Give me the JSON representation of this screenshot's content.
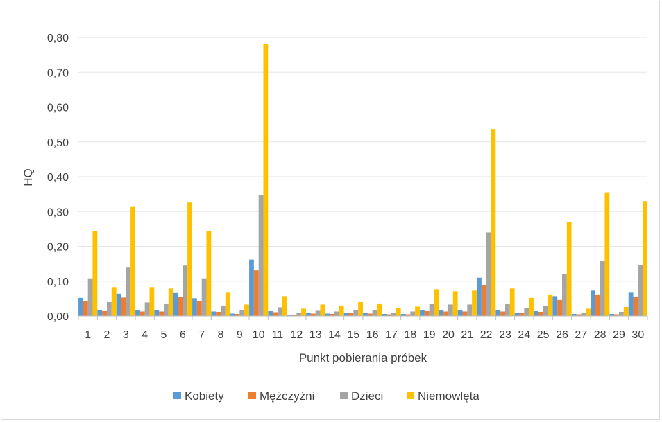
{
  "chart_data": {
    "type": "bar",
    "title": "",
    "xlabel": "Punkt pobierania próbek",
    "ylabel": "HQ",
    "ylim": [
      0,
      0.8
    ],
    "yticks": [
      0,
      0.1,
      0.2,
      0.3,
      0.4,
      0.5,
      0.6,
      0.7,
      0.8
    ],
    "ytick_labels": [
      "0,00",
      "0,10",
      "0,20",
      "0,30",
      "0,40",
      "0,50",
      "0,60",
      "0,70",
      "0,80"
    ],
    "grid": true,
    "legend_position": "bottom",
    "categories": [
      "1",
      "2",
      "3",
      "4",
      "5",
      "6",
      "7",
      "8",
      "9",
      "10",
      "11",
      "12",
      "13",
      "14",
      "15",
      "16",
      "17",
      "18",
      "19",
      "20",
      "21",
      "22",
      "23",
      "24",
      "25",
      "26",
      "27",
      "28",
      "29",
      "30"
    ],
    "series": [
      {
        "name": "Kobiety",
        "color": "#5b9bd5",
        "values": [
          0.052,
          0.016,
          0.064,
          0.016,
          0.016,
          0.066,
          0.051,
          0.013,
          0.007,
          0.162,
          0.014,
          0.004,
          0.008,
          0.007,
          0.009,
          0.008,
          0.006,
          0.006,
          0.017,
          0.016,
          0.016,
          0.11,
          0.016,
          0.01,
          0.014,
          0.057,
          0.006,
          0.073,
          0.006,
          0.067
        ]
      },
      {
        "name": "Mężczyźni",
        "color": "#ed7d31",
        "values": [
          0.042,
          0.014,
          0.053,
          0.013,
          0.013,
          0.054,
          0.042,
          0.012,
          0.006,
          0.131,
          0.011,
          0.004,
          0.007,
          0.006,
          0.008,
          0.007,
          0.005,
          0.005,
          0.014,
          0.013,
          0.013,
          0.089,
          0.013,
          0.009,
          0.012,
          0.046,
          0.005,
          0.06,
          0.005,
          0.054
        ]
      },
      {
        "name": "Dzieci",
        "color": "#a5a5a5",
        "values": [
          0.108,
          0.04,
          0.139,
          0.039,
          0.036,
          0.145,
          0.108,
          0.03,
          0.016,
          0.348,
          0.025,
          0.01,
          0.015,
          0.013,
          0.018,
          0.017,
          0.01,
          0.013,
          0.035,
          0.033,
          0.033,
          0.24,
          0.035,
          0.023,
          0.03,
          0.12,
          0.01,
          0.159,
          0.012,
          0.146
        ]
      },
      {
        "name": "Niemowlęta",
        "color": "#ffc000",
        "values": [
          0.244,
          0.083,
          0.313,
          0.083,
          0.079,
          0.326,
          0.243,
          0.067,
          0.033,
          0.782,
          0.057,
          0.021,
          0.033,
          0.03,
          0.04,
          0.036,
          0.023,
          0.027,
          0.077,
          0.071,
          0.073,
          0.537,
          0.079,
          0.052,
          0.06,
          0.27,
          0.021,
          0.355,
          0.026,
          0.33
        ]
      }
    ]
  }
}
